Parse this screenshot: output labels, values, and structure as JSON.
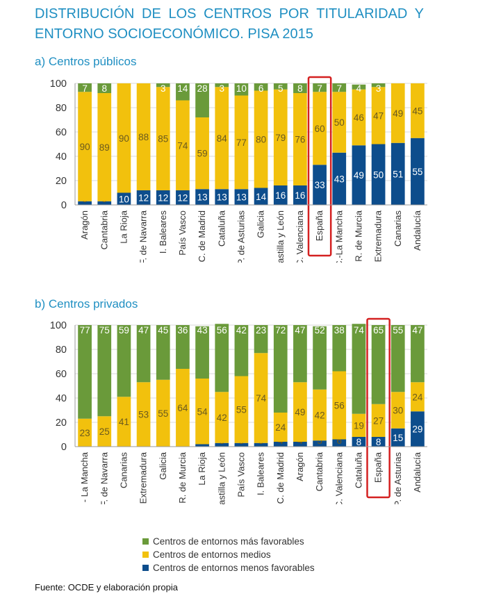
{
  "title": "DISTRIBUCIÓN DE LOS CENTROS POR TITULARIDAD Y ENTORNO SOCIOECONÓMICO. PISA 2015",
  "source": "Fuente: OCDE y elaboración propia",
  "colors": {
    "favorable": "#6a9a3a",
    "medio": "#f2c10d",
    "menos": "#0d4d8c",
    "highlight": "#d42020",
    "grid": "#d9d9d9"
  },
  "legend": [
    {
      "label": "Centros de entornos más favorables",
      "color": "#6a9a3a"
    },
    {
      "label": "Centros de entornos medios",
      "color": "#f2c10d"
    },
    {
      "label": "Centros de entornos menos favorables",
      "color": "#0d4d8c"
    }
  ],
  "chart_data": [
    {
      "type": "bar",
      "stacked": true,
      "title": "a) Centros públicos",
      "ylim": [
        0,
        100
      ],
      "yticks": [
        0,
        20,
        40,
        60,
        80,
        100
      ],
      "highlight": "España",
      "categories": [
        "Aragón",
        "Cantabria",
        "La Rioja",
        "C. F. de Navarra",
        "I. Baleares",
        "País Vasco",
        "C. de Madrid",
        "Cataluña",
        "P. de Asturias",
        "Galicia",
        "Castilla y León",
        "C. Valenciana",
        "España",
        "C.-La Mancha",
        "R. de Murcia",
        "Extremadura",
        "Canarias",
        "Andalucía"
      ],
      "series": [
        {
          "name": "Centros de entornos menos favorables",
          "values": [
            3,
            3,
            10,
            12,
            12,
            12,
            13,
            13,
            13,
            14,
            16,
            16,
            33,
            43,
            49,
            50,
            51,
            55
          ],
          "labels": [
            "3",
            "3",
            "10",
            "12",
            "12",
            "12",
            "13",
            "13",
            "13",
            "14",
            "16",
            "16",
            "33",
            "43",
            "49",
            "50",
            "51",
            "55"
          ]
        },
        {
          "name": "Centros de entornos medios",
          "values": [
            90,
            89,
            90,
            88,
            85,
            74,
            59,
            84,
            77,
            80,
            79,
            76,
            60,
            50,
            46,
            47,
            49,
            45
          ],
          "labels": [
            "90",
            "89",
            "90",
            "88",
            "85",
            "74",
            "59",
            "84",
            "77",
            "80",
            "79",
            "76",
            "60",
            "50",
            "46",
            "47",
            "49",
            "45"
          ]
        },
        {
          "name": "Centros de entornos más favorables",
          "values": [
            7,
            8,
            0,
            0,
            3,
            14,
            28,
            3,
            10,
            6,
            5,
            8,
            7,
            7,
            4,
            3,
            0,
            0
          ],
          "labels": [
            "7",
            "8",
            "",
            "",
            "3",
            "14",
            "28",
            "3",
            "10",
            "6",
            "5",
            "8",
            "7",
            "7",
            "4",
            "3",
            "",
            ""
          ]
        }
      ]
    },
    {
      "type": "bar",
      "stacked": true,
      "title": "b) Centros privados",
      "ylim": [
        0,
        100
      ],
      "yticks": [
        0,
        20,
        40,
        60,
        80,
        100
      ],
      "highlight": "España",
      "categories": [
        "C. - La Mancha",
        "C. F. de Navarra",
        "Canarias",
        "Extremadura",
        "Galicia",
        "R. de Murcia",
        "La Rioja",
        "Castilla y León",
        "País Vasco",
        "I. Baleares",
        "C. de Madrid",
        "Aragón",
        "Cantabria",
        "C. Valenciana",
        "Cataluña",
        "España",
        "P. de Asturias",
        "Andalucía"
      ],
      "series": [
        {
          "name": "Centros de entornos menos favorables",
          "values": [
            0,
            0,
            0,
            0,
            0,
            0,
            2,
            3,
            3,
            3,
            4,
            4,
            5,
            6,
            8,
            8,
            15,
            29
          ],
          "labels": [
            "",
            "",
            "",
            "",
            "",
            "",
            "2",
            "3",
            "3",
            "3",
            "4",
            "4",
            "5",
            "6",
            "8",
            "8",
            "15",
            "29"
          ]
        },
        {
          "name": "Centros de entornos medios",
          "values": [
            23,
            25,
            41,
            53,
            55,
            64,
            54,
            42,
            55,
            74,
            24,
            49,
            42,
            56,
            19,
            27,
            30,
            24
          ],
          "labels": [
            "23",
            "25",
            "41",
            "53",
            "55",
            "64",
            "54",
            "42",
            "55",
            "74",
            "24",
            "49",
            "42",
            "56",
            "19",
            "27",
            "30",
            "24"
          ]
        },
        {
          "name": "Centros de entornos más favorables",
          "values": [
            77,
            75,
            59,
            47,
            45,
            36,
            43,
            56,
            42,
            23,
            72,
            47,
            52,
            38,
            74,
            65,
            55,
            47
          ],
          "labels": [
            "77",
            "75",
            "59",
            "47",
            "45",
            "36",
            "43",
            "56",
            "42",
            "23",
            "72",
            "47",
            "52",
            "38",
            "74",
            "65",
            "55",
            "47"
          ]
        }
      ]
    }
  ]
}
